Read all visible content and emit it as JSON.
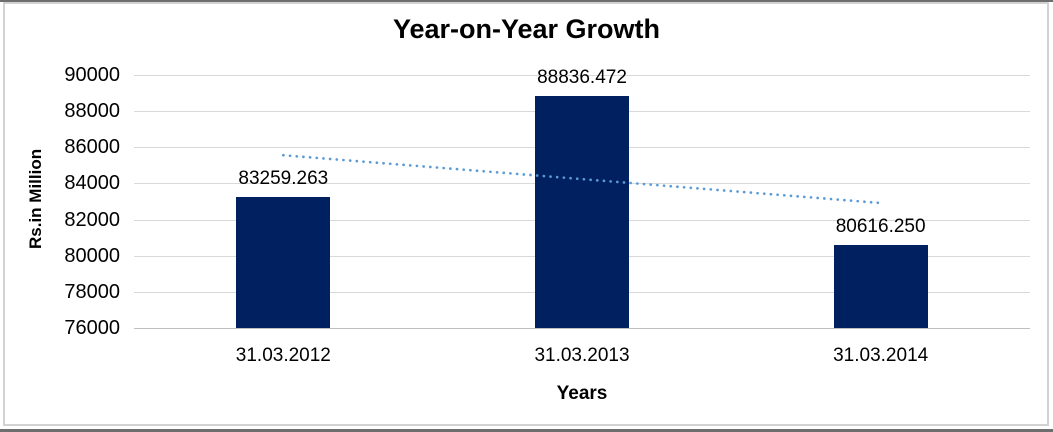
{
  "window": {
    "background": "#ffffff",
    "edge_color": "#6e6e6e",
    "frame_border_color": "#d2d2d2"
  },
  "chart_data": {
    "type": "bar",
    "title": "Year-on-Year Growth",
    "categories": [
      "31.03.2012",
      "31.03.2013",
      "31.03.2014"
    ],
    "values": [
      83259.263,
      88836.472,
      80616.25
    ],
    "data_labels": [
      "83259.263",
      "88836.472",
      "80616.250"
    ],
    "xlabel": "Years",
    "ylabel": "Rs.in Million",
    "ylim": [
      76000,
      90000
    ],
    "yticks": [
      76000,
      78000,
      80000,
      82000,
      84000,
      86000,
      88000,
      90000
    ],
    "grid": true,
    "legend": false,
    "bar_color": "#002060",
    "gridline_color": "#d9d9d9",
    "trendline": {
      "type": "linear",
      "style": "dotted",
      "color": "#5b9bd5",
      "start_value": 85558.8,
      "end_value": 82915.8
    }
  }
}
